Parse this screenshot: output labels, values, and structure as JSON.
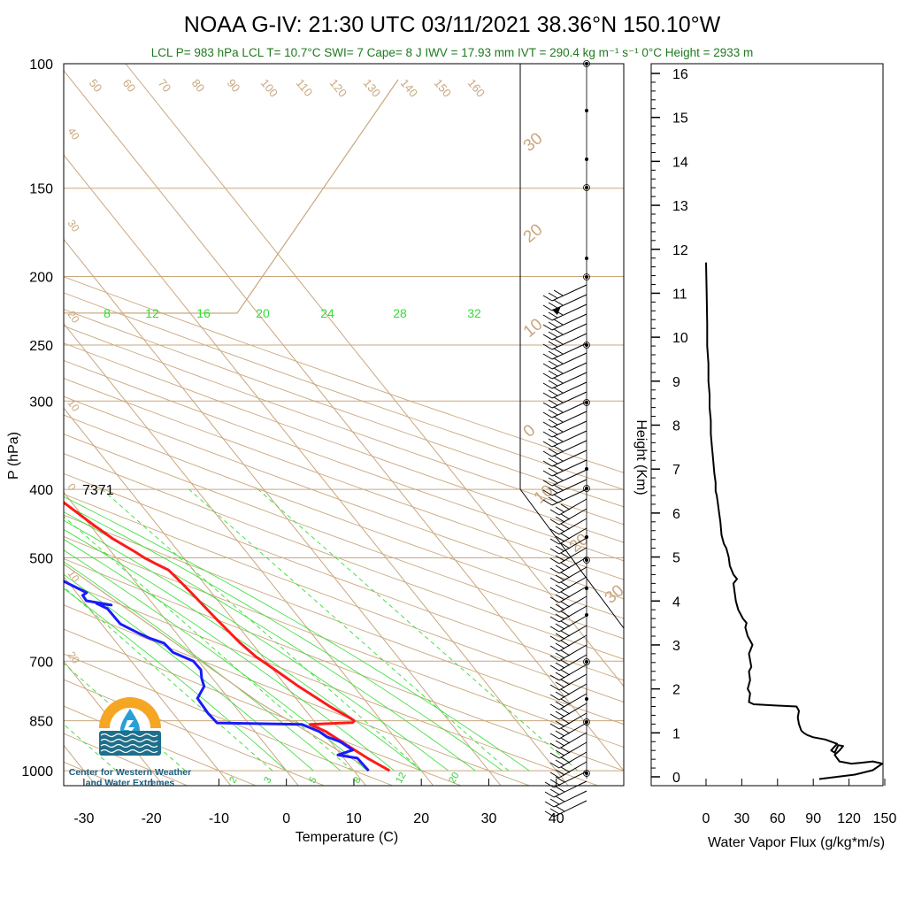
{
  "title": "NOAA G-IV: 21:30 UTC 03/11/2021  38.36°N 150.10°W",
  "subtitle": "LCL P= 983 hPa  LCL T= 10.7°C  SWI= 7  Cape= 8 J  IWV = 17.93 mm  IVT = 290.4 kg m⁻¹ s⁻¹  0°C Height = 2933 m",
  "height_marker": "7371",
  "logo": {
    "line1": "Center for Western Weather",
    "line2": "and Water Extremes",
    "colors": {
      "sun": "#f5a623",
      "water": "#1f6f8b",
      "drop": "#2a9fd6"
    }
  },
  "colors": {
    "temperature": "#ff1a1a",
    "dewpoint": "#1a1aff",
    "isotherm": "#c9a77e",
    "moist_adiabat": "#33dd33",
    "mixing_ratio": "#33dd33",
    "flux": "#000000"
  },
  "chart_data": [
    {
      "type": "line",
      "xlabel": "Temperature (C)",
      "ylabel": "P (hPa)",
      "x_ticks": [
        -30,
        -20,
        -10,
        0,
        10,
        20,
        30,
        40
      ],
      "y_ticks": [
        100,
        150,
        200,
        250,
        300,
        400,
        500,
        700,
        850,
        1000
      ],
      "xlim": [
        -33,
        50
      ],
      "ylim": [
        1050,
        100
      ],
      "y_scale": "log",
      "dry_adiabat_labels": [
        "50",
        "60",
        "70",
        "80",
        "90",
        "100",
        "110",
        "120",
        "130",
        "140",
        "150",
        "160"
      ],
      "isotherm_labels": [
        "40",
        "30",
        "20",
        "10",
        "0",
        "10",
        "20",
        "30",
        "20",
        "10",
        "0",
        "10",
        "20",
        "30"
      ],
      "moist_adiabat_labels": [
        "8",
        "12",
        "16",
        "20",
        "24",
        "28",
        "32"
      ],
      "mixing_ratio_labels": [
        "2",
        "3",
        "5",
        "8",
        "12",
        "20"
      ],
      "series": [
        {
          "name": "temperature",
          "points": [
            [
              15.3,
              1000
            ],
            [
              13.5,
              960
            ],
            [
              12,
              920
            ],
            [
              10.5,
              880
            ],
            [
              9,
              860
            ],
            [
              15.5,
              855
            ],
            [
              16,
              850
            ],
            [
              15.8,
              845
            ],
            [
              14,
              810
            ],
            [
              11.8,
              760
            ],
            [
              10.3,
              720
            ],
            [
              9,
              690
            ],
            [
              8.3,
              660
            ],
            [
              7.6,
              610
            ],
            [
              7,
              560
            ],
            [
              6.6,
              535
            ],
            [
              6.3,
              520
            ],
            [
              5.2,
              510
            ],
            [
              4.2,
              500
            ],
            [
              3.5,
              490
            ],
            [
              1.8,
              470
            ],
            [
              0.6,
              450
            ],
            [
              -0.5,
              430
            ],
            [
              -1.6,
              410
            ],
            [
              -2.4,
              395
            ],
            [
              -3.5,
              380
            ],
            [
              -4.3,
              370
            ],
            [
              -4.9,
              350
            ],
            [
              -5.7,
              335
            ],
            [
              -7.3,
              315
            ],
            [
              -9,
              300
            ],
            [
              -10.8,
              285
            ],
            [
              -12,
              270
            ],
            [
              -13.5,
              255
            ],
            [
              -15.4,
              240
            ],
            [
              -16.8,
              230
            ],
            [
              -17.6,
              220
            ],
            [
              -18.3,
              212
            ],
            [
              -18.9,
              205
            ]
          ]
        },
        {
          "name": "dewpoint",
          "points": [
            [
              12.2,
              1000
            ],
            [
              12,
              960
            ],
            [
              9.5,
              950
            ],
            [
              12.3,
              935
            ],
            [
              11.4,
              910
            ],
            [
              10,
              895
            ],
            [
              9.5,
              880
            ],
            [
              7.8,
              860
            ],
            [
              -4.6,
              856
            ],
            [
              -4.8,
              830
            ],
            [
              -4.6,
              790
            ],
            [
              -2.2,
              760
            ],
            [
              -1.6,
              740
            ],
            [
              -0.7,
              720
            ],
            [
              -0.8,
              700
            ],
            [
              -2.8,
              680
            ],
            [
              -3,
              660
            ],
            [
              -4.5,
              650
            ],
            [
              -5.5,
              640
            ],
            [
              -7.2,
              620
            ],
            [
              -7.3,
              590
            ],
            [
              -8.3,
              580
            ],
            [
              -6.3,
              583
            ],
            [
              -9.5,
              575
            ],
            [
              -9.4,
              565
            ],
            [
              -8.5,
              560
            ],
            [
              -10.5,
              540
            ],
            [
              -10.6,
              530
            ],
            [
              -12.1,
              520
            ],
            [
              -12,
              505
            ],
            [
              -11.8,
              490
            ],
            [
              -12.6,
              480
            ],
            [
              -12.5,
              470
            ],
            [
              -11,
              462
            ],
            [
              -12.4,
              455
            ],
            [
              -13.7,
              440
            ],
            [
              -16,
              430
            ],
            [
              -16.8,
              415
            ],
            [
              -17.3,
              400
            ],
            [
              -18.2,
              385
            ],
            [
              -19.8,
              370
            ],
            [
              -20.3,
              360
            ],
            [
              -19,
              355
            ],
            [
              -13.2,
              350
            ],
            [
              -16.6,
              345
            ],
            [
              -17.7,
              340
            ],
            [
              -17.1,
              335
            ],
            [
              -16.3,
              318
            ],
            [
              -12.6,
              305
            ],
            [
              -11.6,
              300
            ],
            [
              -14.9,
              290
            ],
            [
              -18.4,
              285
            ],
            [
              -18.9,
              275
            ],
            [
              -20.5,
              270
            ],
            [
              -22.6,
              262
            ],
            [
              -24.8,
              255
            ],
            [
              -25.5,
              250
            ],
            [
              -24.8,
              245
            ],
            [
              -23,
              240
            ],
            [
              -21.9,
              235
            ],
            [
              -22.5,
              230
            ],
            [
              -23.8,
              225
            ],
            [
              -25.5,
              218
            ],
            [
              -26.5,
              212
            ],
            [
              -27.3,
              205
            ]
          ]
        }
      ]
    },
    {
      "type": "line",
      "xlabel": "Water Vapor Flux (g/kg*m/s)",
      "ylabel": "Height (Km)",
      "x_ticks": [
        0,
        30,
        60,
        90,
        120,
        150
      ],
      "y_ticks": [
        0,
        1,
        2,
        3,
        4,
        5,
        6,
        7,
        8,
        9,
        10,
        11,
        12,
        13,
        14,
        15,
        16
      ],
      "xlim": [
        0,
        150
      ],
      "ylim": [
        -0.2,
        16.3
      ],
      "series": [
        {
          "name": "water_vapor_flux",
          "points": [
            [
              95,
              -0.05
            ],
            [
              110,
              0.0
            ],
            [
              125,
              0.05
            ],
            [
              140,
              0.15
            ],
            [
              148,
              0.3
            ],
            [
              140,
              0.35
            ],
            [
              130,
              0.32
            ],
            [
              122,
              0.3
            ],
            [
              112,
              0.35
            ],
            [
              108,
              0.5
            ],
            [
              112,
              0.6
            ],
            [
              115,
              0.7
            ],
            [
              111,
              0.72
            ],
            [
              108,
              0.55
            ],
            [
              105,
              0.6
            ],
            [
              110,
              0.75
            ],
            [
              100,
              0.85
            ],
            [
              90,
              0.9
            ],
            [
              85,
              0.95
            ],
            [
              82,
              1.0
            ],
            [
              80,
              1.05
            ],
            [
              78,
              1.2
            ],
            [
              77,
              1.35
            ],
            [
              78,
              1.5
            ],
            [
              76,
              1.6
            ],
            [
              60,
              1.62
            ],
            [
              40,
              1.65
            ],
            [
              36,
              1.7
            ],
            [
              37,
              1.9
            ],
            [
              35,
              2.0
            ],
            [
              37,
              2.2
            ],
            [
              36,
              2.4
            ],
            [
              38,
              2.5
            ],
            [
              36,
              2.8
            ],
            [
              39,
              3.0
            ],
            [
              35,
              3.2
            ],
            [
              33,
              3.4
            ],
            [
              34,
              3.5
            ],
            [
              31,
              3.6
            ],
            [
              27,
              3.8
            ],
            [
              25,
              4.0
            ],
            [
              24,
              4.2
            ],
            [
              23,
              4.4
            ],
            [
              26,
              4.5
            ],
            [
              23,
              4.6
            ],
            [
              20,
              4.8
            ],
            [
              19,
              5.0
            ],
            [
              17,
              5.2
            ],
            [
              15,
              5.3
            ],
            [
              13,
              5.5
            ],
            [
              12,
              5.8
            ],
            [
              11,
              6.0
            ],
            [
              10,
              6.2
            ],
            [
              9,
              6.4
            ],
            [
              8,
              6.5
            ],
            [
              8,
              6.7
            ],
            [
              7,
              6.9
            ],
            [
              6,
              7.2
            ],
            [
              5,
              7.5
            ],
            [
              4,
              7.8
            ],
            [
              4,
              8.1
            ],
            [
              3,
              8.4
            ],
            [
              3,
              8.7
            ],
            [
              2,
              9.0
            ],
            [
              2,
              9.4
            ],
            [
              1,
              9.8
            ],
            [
              1,
              10.3
            ],
            [
              0.5,
              11.0
            ],
            [
              0,
              11.7
            ]
          ]
        }
      ]
    }
  ]
}
